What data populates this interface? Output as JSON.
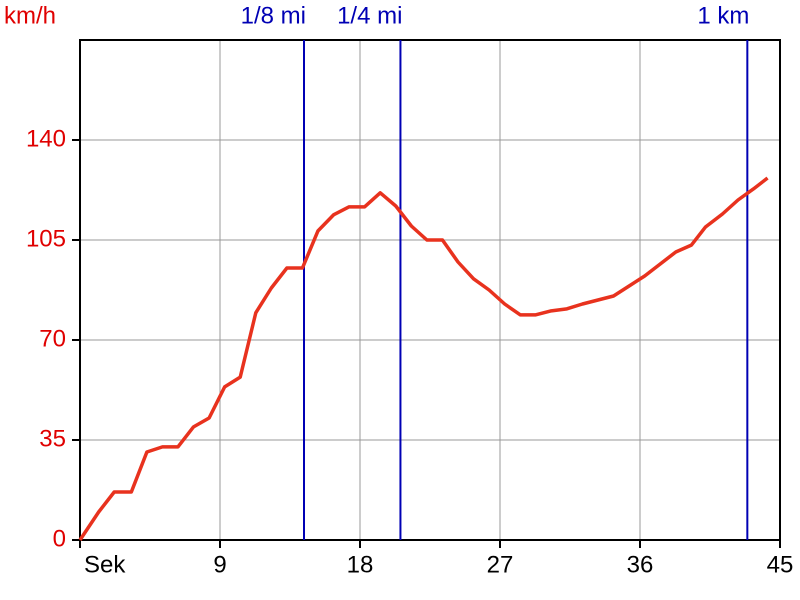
{
  "chart_data": {
    "type": "line",
    "ylabel": "km/h",
    "x": [
      0,
      1.2,
      2.2,
      3.3,
      4.3,
      5.3,
      6.3,
      7.3,
      8.3,
      9.3,
      10.3,
      11.3,
      12.3,
      13.3,
      14.3,
      15.3,
      16.3,
      17.3,
      18.3,
      19.3,
      20.3,
      21.3,
      22.3,
      23.3,
      24.3,
      25.3,
      26.3,
      27.3,
      28.3,
      29.3,
      30.3,
      31.3,
      32.3,
      33.3,
      34.3,
      35.3,
      36.3,
      37.3,
      38.3,
      39.3,
      40.2,
      41.3,
      42.3,
      43.3,
      44.2
    ],
    "values": [
      0,
      9.8,
      16.8,
      16.8,
      30.8,
      32.6,
      32.6,
      39.6,
      42.7,
      53.6,
      57,
      79.5,
      88.2,
      95.2,
      95.2,
      108.2,
      113.8,
      116.6,
      116.6,
      121.5,
      116.9,
      109.9,
      105,
      105,
      97.3,
      91.4,
      87.5,
      82.6,
      78.8,
      78.8,
      80.2,
      80.9,
      82.6,
      84,
      85.4,
      88.9,
      92.4,
      96.6,
      100.8,
      103.2,
      109.5,
      114.1,
      119,
      122.9,
      126.7
    ],
    "color": "#e8321e",
    "xlim": [
      0,
      45
    ],
    "xticks": [
      {
        "value": 0,
        "label": "Sek"
      },
      9,
      18,
      27,
      36,
      45
    ],
    "ylim": [
      0,
      175
    ],
    "yticks": [
      0,
      35,
      70,
      105,
      140
    ],
    "grid": true,
    "markers": [
      {
        "label": "1/8 mi",
        "x": 14.4,
        "color": "#0000b4"
      },
      {
        "label": "1/4 mi",
        "x": 20.6,
        "color": "#0000b4"
      },
      {
        "label": "1 km",
        "x": 42.9,
        "color": "#0000b4"
      }
    ]
  }
}
